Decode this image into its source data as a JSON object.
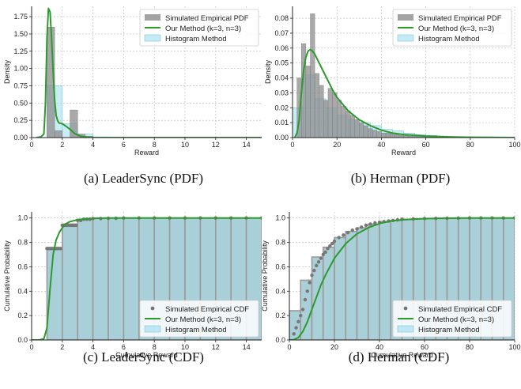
{
  "chart_data": [
    {
      "type": "bar",
      "kind": "pdf",
      "xlabel": "Reward",
      "ylabel": "Density",
      "xlim": [
        0,
        15
      ],
      "ylim": [
        0,
        1.9
      ],
      "xticks": [
        0,
        2,
        4,
        6,
        8,
        10,
        12,
        14
      ],
      "yticks": [
        0.0,
        0.25,
        0.5,
        0.75,
        1.0,
        1.25,
        1.5,
        1.75
      ],
      "ytick_labels": [
        "0.00",
        "0.25",
        "0.50",
        "0.75",
        "1.00",
        "1.25",
        "1.50",
        "1.75"
      ],
      "grid": true,
      "legend_position": "top-right",
      "legend": [
        "Simulated Empirical PDF",
        "Our Method (k=3, n=3)",
        "Histogram Method"
      ],
      "caption": "(a) LeaderSync (PDF)",
      "empirical_bars": {
        "x0": [
          1.0,
          1.5,
          2.5,
          3.0,
          3.5
        ],
        "width": 0.5,
        "values": [
          1.6,
          0.1,
          0.4,
          0.05,
          0.02
        ]
      },
      "histogram_bars": {
        "x0": [
          1.0,
          2.0,
          3.0,
          4.0
        ],
        "width": 1.0,
        "values": [
          0.75,
          0.2,
          0.05,
          0.01
        ]
      },
      "fitted_curve": {
        "x": [
          0.3,
          0.6,
          0.8,
          0.9,
          1.0,
          1.1,
          1.2,
          1.3,
          1.4,
          1.5,
          1.6,
          1.7,
          1.8,
          2.0,
          2.2,
          2.5,
          2.8,
          3.2,
          3.6,
          4.0,
          5.0,
          7.0,
          10.0,
          15.0
        ],
        "y": [
          0.0,
          0.01,
          0.05,
          0.5,
          1.45,
          1.87,
          1.82,
          1.45,
          0.95,
          0.55,
          0.32,
          0.24,
          0.21,
          0.2,
          0.17,
          0.12,
          0.06,
          0.02,
          0.005,
          0.0,
          0.0,
          0.0,
          0.0,
          0.0
        ]
      }
    },
    {
      "type": "bar",
      "kind": "pdf",
      "xlabel": "Reward",
      "ylabel": "Density",
      "xlim": [
        0,
        100
      ],
      "ylim": [
        0,
        0.088
      ],
      "xticks": [
        0,
        20,
        40,
        60,
        80,
        100
      ],
      "yticks": [
        0.0,
        0.01,
        0.02,
        0.03,
        0.04,
        0.05,
        0.06,
        0.07,
        0.08
      ],
      "ytick_labels": [
        "0.00",
        "0.01",
        "0.02",
        "0.03",
        "0.04",
        "0.05",
        "0.06",
        "0.07",
        "0.08"
      ],
      "grid": true,
      "legend_position": "top-right",
      "legend": [
        "Simulated Empirical PDF",
        "Our Method (k=3, n=3)",
        "Histogram Method"
      ],
      "caption": "(b) Herman (PDF)",
      "empirical_bars": {
        "x0": [
          2,
          4,
          6,
          8,
          10,
          12,
          14,
          16,
          18,
          20,
          22,
          24,
          26,
          28,
          30,
          32,
          34,
          36,
          38,
          40,
          42,
          44,
          46,
          48,
          50,
          52,
          54,
          56,
          58,
          60,
          62,
          64,
          66,
          68,
          70,
          72
        ],
        "width": 2,
        "values": [
          0.04,
          0.063,
          0.048,
          0.083,
          0.043,
          0.035,
          0.025,
          0.033,
          0.03,
          0.025,
          0.021,
          0.018,
          0.015,
          0.012,
          0.01,
          0.008,
          0.006,
          0.005,
          0.004,
          0.003,
          0.003,
          0.0025,
          0.002,
          0.0015,
          0.0013,
          0.001,
          0.001,
          0.0008,
          0.0006,
          0.0005,
          0.0004,
          0.0003,
          0.0003,
          0.0002,
          0.0002,
          0.0001
        ]
      },
      "histogram_bars": {
        "x0": [
          0,
          5,
          10,
          15,
          20,
          25,
          30,
          35,
          40,
          45,
          50,
          55,
          60,
          65,
          70,
          75
        ],
        "width": 5,
        "values": [
          0.02,
          0.042,
          0.026,
          0.02,
          0.015,
          0.012,
          0.01,
          0.008,
          0.0055,
          0.0045,
          0.003,
          0.002,
          0.0015,
          0.001,
          0.0005,
          0.0003
        ]
      },
      "fitted_curve": {
        "x": [
          1,
          2,
          3,
          4,
          5,
          6,
          7,
          8,
          9,
          10,
          12,
          14,
          16,
          18,
          20,
          25,
          30,
          35,
          40,
          45,
          50,
          60,
          70,
          80,
          90,
          100
        ],
        "y": [
          0.0,
          0.003,
          0.012,
          0.03,
          0.045,
          0.054,
          0.058,
          0.059,
          0.058,
          0.056,
          0.05,
          0.044,
          0.038,
          0.032,
          0.027,
          0.018,
          0.012,
          0.008,
          0.005,
          0.003,
          0.002,
          0.001,
          0.0005,
          0.0002,
          0.0001,
          0.0
        ]
      }
    },
    {
      "type": "bar",
      "kind": "cdf",
      "xlabel": "Cumulative Reward",
      "ylabel": "Cumulative Probability",
      "xlim": [
        0,
        15
      ],
      "ylim": [
        0,
        1.05
      ],
      "xticks": [
        0,
        2,
        4,
        6,
        8,
        10,
        12,
        14
      ],
      "yticks": [
        0.0,
        0.2,
        0.4,
        0.6,
        0.8,
        1.0
      ],
      "ytick_labels": [
        "0.0",
        "0.2",
        "0.4",
        "0.6",
        "0.8",
        "1.0"
      ],
      "grid": true,
      "legend_position": "bottom-right",
      "legend": [
        "Simulated Empirical CDF",
        "Our Method (k=3, n=3)",
        "Histogram Method"
      ],
      "caption": "(c) LeaderSync (CDF)",
      "histogram_bars": {
        "x0": [
          1,
          2,
          3,
          4,
          5,
          6,
          7,
          8,
          9,
          10,
          11,
          12,
          13,
          14
        ],
        "width": 1,
        "values": [
          0.75,
          0.95,
          0.99,
          1.0,
          1.0,
          1.0,
          1.0,
          1.0,
          1.0,
          1.0,
          1.0,
          1.0,
          1.0,
          1.0
        ]
      },
      "empirical_points": {
        "x": [
          1.0,
          1.1,
          1.2,
          1.3,
          1.4,
          1.5,
          1.6,
          1.7,
          1.8,
          1.9,
          2.0,
          2.1,
          2.2,
          2.3,
          2.4,
          2.5,
          2.6,
          2.7,
          2.8,
          2.9,
          3.0,
          3.2,
          3.4,
          3.6,
          3.8,
          4.0,
          4.5,
          5.0,
          5.5,
          6.0,
          7.0,
          8.0,
          9.0,
          10.0,
          11.0,
          12.0,
          13.0,
          14.0,
          15.0
        ],
        "y": [
          0.75,
          0.75,
          0.75,
          0.75,
          0.75,
          0.75,
          0.75,
          0.75,
          0.75,
          0.75,
          0.94,
          0.94,
          0.94,
          0.94,
          0.94,
          0.94,
          0.94,
          0.94,
          0.94,
          0.94,
          0.98,
          0.98,
          0.99,
          0.99,
          0.99,
          0.995,
          0.995,
          0.998,
          0.998,
          1.0,
          1.0,
          1.0,
          1.0,
          1.0,
          1.0,
          1.0,
          1.0,
          1.0,
          1.0
        ]
      },
      "fitted_curve": {
        "x": [
          0,
          0.5,
          0.8,
          1.0,
          1.2,
          1.4,
          1.6,
          1.8,
          2.0,
          2.2,
          2.5,
          3.0,
          3.5,
          4.0,
          5.0,
          6.0,
          8.0,
          10.0,
          12.0,
          15.0
        ],
        "y": [
          0.0,
          0.0,
          0.01,
          0.1,
          0.42,
          0.7,
          0.82,
          0.88,
          0.92,
          0.95,
          0.97,
          0.985,
          0.993,
          0.997,
          1.0,
          1.0,
          1.0,
          1.0,
          1.0,
          1.0
        ]
      }
    },
    {
      "type": "bar",
      "kind": "cdf",
      "xlabel": "Cumulative Reward",
      "ylabel": "Cumulative Probability",
      "xlim": [
        0,
        100
      ],
      "ylim": [
        0,
        1.05
      ],
      "xticks": [
        0,
        20,
        40,
        60,
        80,
        100
      ],
      "yticks": [
        0.0,
        0.2,
        0.4,
        0.6,
        0.8,
        1.0
      ],
      "ytick_labels": [
        "0.0",
        "0.2",
        "0.4",
        "0.6",
        "0.8",
        "1.0"
      ],
      "grid": true,
      "legend_position": "bottom-right",
      "legend": [
        "Simulated Empirical CDF",
        "Our Method (k=3, n=3)",
        "Histogram Method"
      ],
      "caption": "(d) Herman (CDF)",
      "histogram_bars": {
        "x0": [
          0,
          5,
          10,
          15,
          20,
          25,
          30,
          35,
          40,
          45,
          50,
          55,
          60,
          65,
          70,
          75,
          80,
          85,
          90,
          95
        ],
        "width": 5,
        "values": [
          0.24,
          0.49,
          0.68,
          0.76,
          0.84,
          0.89,
          0.92,
          0.95,
          0.97,
          0.98,
          0.99,
          0.993,
          0.996,
          0.998,
          1.0,
          1.0,
          1.0,
          1.0,
          1.0,
          1.0
        ]
      },
      "empirical_points": {
        "x": [
          2,
          3,
          4,
          5,
          6,
          7,
          8,
          9,
          10,
          11,
          12,
          13,
          14,
          15,
          16,
          17,
          18,
          19,
          20,
          22,
          24,
          26,
          28,
          30,
          32,
          34,
          36,
          38,
          40,
          42,
          44,
          46,
          48,
          50,
          55,
          60,
          65,
          70,
          75,
          80,
          85,
          90,
          95,
          100
        ],
        "y": [
          0.05,
          0.1,
          0.15,
          0.2,
          0.25,
          0.33,
          0.4,
          0.47,
          0.53,
          0.57,
          0.61,
          0.64,
          0.67,
          0.7,
          0.72,
          0.75,
          0.77,
          0.79,
          0.81,
          0.84,
          0.86,
          0.88,
          0.9,
          0.91,
          0.925,
          0.94,
          0.95,
          0.96,
          0.965,
          0.97,
          0.975,
          0.98,
          0.985,
          0.99,
          0.993,
          0.995,
          0.997,
          0.998,
          0.999,
          1.0,
          1.0,
          1.0,
          1.0,
          1.0
        ]
      },
      "fitted_curve": {
        "x": [
          0,
          2,
          4,
          6,
          8,
          10,
          12,
          14,
          16,
          18,
          20,
          25,
          30,
          35,
          40,
          45,
          50,
          60,
          70,
          80,
          90,
          100
        ],
        "y": [
          0.0,
          0.002,
          0.02,
          0.07,
          0.15,
          0.25,
          0.35,
          0.45,
          0.53,
          0.6,
          0.67,
          0.79,
          0.87,
          0.92,
          0.955,
          0.975,
          0.985,
          0.995,
          0.998,
          1.0,
          1.0,
          1.0
        ]
      }
    }
  ]
}
